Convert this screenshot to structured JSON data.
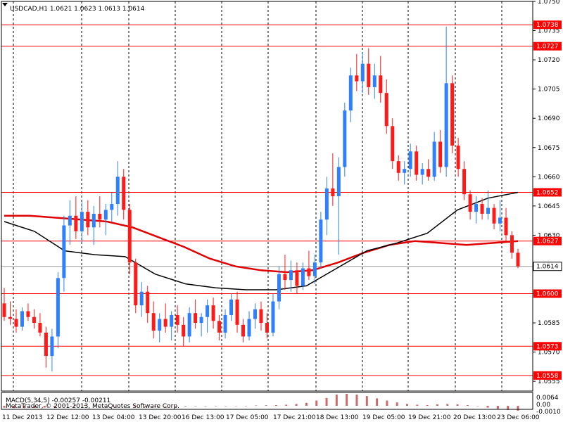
{
  "header": {
    "symbol_line": "USDCAD,H1  1.0621 1.0623 1.0613 1.0614"
  },
  "macd": {
    "label": "MACD(5,34,5) -0.00257 -0.00211",
    "copyright": "MetaTrader, © 2001-2013, MetaQuotes Software Corp.",
    "scale_top": "0.0064",
    "scale_zero": "0.00",
    "scale_bottom": "-0.0010"
  },
  "colors": {
    "bull": "#2f7fff",
    "bear": "#ff1a1a",
    "ma_slow": "#e00000",
    "ma_fast": "#000000",
    "level_line": "#ff0000",
    "grid": "#000000",
    "macd_bar": "#cc6b6b"
  },
  "chart_data": {
    "type": "candlestick",
    "symbol": "USDCAD",
    "timeframe": "H1",
    "last_price": 1.0614,
    "y_range": [
      1.055,
      1.075
    ],
    "price_ticks": [
      "1.0750",
      "1.0735",
      "1.0720",
      "1.0705",
      "1.0690",
      "1.0675",
      "1.0660",
      "1.0645",
      "1.0630",
      "1.0615",
      "1.0600",
      "1.0585",
      "1.0570",
      "1.0555"
    ],
    "levels": [
      {
        "value": 1.0738,
        "label": "1.0738"
      },
      {
        "value": 1.0727,
        "label": "1.0727"
      },
      {
        "value": 1.0652,
        "label": "1.0652"
      },
      {
        "value": 1.0627,
        "label": "1.0627"
      },
      {
        "value": 1.06,
        "label": "1.0600"
      },
      {
        "value": 1.0573,
        "label": "1.0573"
      },
      {
        "value": 1.0558,
        "label": "1.0558"
      }
    ],
    "x_labels": [
      "11 Dec 2013",
      "12 Dec 12:00",
      "13 Dec 04:00",
      "13 Dec 20:00",
      "16 Dec 13:00",
      "17 Dec 05:00",
      "17 Dec 21:00",
      "18 Dec 13:00",
      "19 Dec 05:00",
      "19 Dec 21:00",
      "20 Dec 13:00",
      "23 Dec 06:00"
    ],
    "candles": [
      [
        1.0595,
        1.0603,
        1.0586,
        1.0588
      ],
      [
        1.0588,
        1.0596,
        1.0584,
        1.0587
      ],
      [
        1.0587,
        1.0592,
        1.058,
        1.0583
      ],
      [
        1.0583,
        1.0593,
        1.0581,
        1.0591
      ],
      [
        1.0591,
        1.0595,
        1.0586,
        1.0588
      ],
      [
        1.0588,
        1.0592,
        1.0582,
        1.0585
      ],
      [
        1.0585,
        1.059,
        1.0578,
        1.058
      ],
      [
        1.058,
        1.0583,
        1.0562,
        1.0568
      ],
      [
        1.0568,
        1.0582,
        1.056,
        1.0578
      ],
      [
        1.0578,
        1.0611,
        1.0572,
        1.0608
      ],
      [
        1.0608,
        1.064,
        1.0601,
        1.0635
      ],
      [
        1.0635,
        1.0648,
        1.0625,
        1.064
      ],
      [
        1.064,
        1.065,
        1.0628,
        1.0632
      ],
      [
        1.0632,
        1.0647,
        1.0626,
        1.0642
      ],
      [
        1.0642,
        1.0648,
        1.063,
        1.0634
      ],
      [
        1.0634,
        1.0645,
        1.0625,
        1.0641
      ],
      [
        1.0641,
        1.065,
        1.0634,
        1.0638
      ],
      [
        1.0638,
        1.0646,
        1.063,
        1.0643
      ],
      [
        1.0643,
        1.0652,
        1.0637,
        1.0646
      ],
      [
        1.0646,
        1.0668,
        1.064,
        1.066
      ],
      [
        1.066,
        1.0664,
        1.0638,
        1.0643
      ],
      [
        1.0643,
        1.0646,
        1.061,
        1.0616
      ],
      [
        1.0616,
        1.0618,
        1.059,
        1.0594
      ],
      [
        1.0594,
        1.0606,
        1.0588,
        1.0601
      ],
      [
        1.0601,
        1.0604,
        1.0585,
        1.059
      ],
      [
        1.059,
        1.0596,
        1.0577,
        1.0581
      ],
      [
        1.0581,
        1.059,
        1.0575,
        1.0587
      ],
      [
        1.0587,
        1.0595,
        1.058,
        1.0583
      ],
      [
        1.0583,
        1.0591,
        1.0576,
        1.0589
      ],
      [
        1.0589,
        1.0594,
        1.058,
        1.0584
      ],
      [
        1.0584,
        1.0588,
        1.0573,
        1.0578
      ],
      [
        1.0578,
        1.0593,
        1.0575,
        1.059
      ],
      [
        1.059,
        1.0597,
        1.0582,
        1.0585
      ],
      [
        1.0585,
        1.059,
        1.0578,
        1.0588
      ],
      [
        1.0588,
        1.0597,
        1.058,
        1.0594
      ],
      [
        1.0594,
        1.0598,
        1.0582,
        1.0586
      ],
      [
        1.0586,
        1.0589,
        1.0576,
        1.058
      ],
      [
        1.058,
        1.0592,
        1.0577,
        1.0589
      ],
      [
        1.0589,
        1.06,
        1.0586,
        1.0597
      ],
      [
        1.0597,
        1.0601,
        1.058,
        1.0584
      ],
      [
        1.0584,
        1.0587,
        1.0575,
        1.0578
      ],
      [
        1.0578,
        1.0591,
        1.0576,
        1.0587
      ],
      [
        1.0587,
        1.0595,
        1.0582,
        1.0592
      ],
      [
        1.0592,
        1.0596,
        1.0581,
        1.0585
      ],
      [
        1.0585,
        1.059,
        1.0577,
        1.058
      ],
      [
        1.058,
        1.06,
        1.0578,
        1.0596
      ],
      [
        1.0596,
        1.0614,
        1.0592,
        1.061
      ],
      [
        1.061,
        1.062,
        1.0602,
        1.0607
      ],
      [
        1.0607,
        1.0617,
        1.0601,
        1.0612
      ],
      [
        1.0612,
        1.0616,
        1.06,
        1.0604
      ],
      [
        1.0604,
        1.0616,
        1.0602,
        1.0613
      ],
      [
        1.0613,
        1.0622,
        1.0607,
        1.0609
      ],
      [
        1.0609,
        1.062,
        1.0605,
        1.0616
      ],
      [
        1.0616,
        1.0642,
        1.0613,
        1.0638
      ],
      [
        1.0638,
        1.066,
        1.063,
        1.0654
      ],
      [
        1.0654,
        1.0672,
        1.0645,
        1.065
      ],
      [
        1.065,
        1.067,
        1.062,
        1.0665
      ],
      [
        1.0665,
        1.0698,
        1.066,
        1.0694
      ],
      [
        1.0694,
        1.0716,
        1.0688,
        1.0712
      ],
      [
        1.0712,
        1.0723,
        1.0704,
        1.0709
      ],
      [
        1.0709,
        1.0724,
        1.0703,
        1.0718
      ],
      [
        1.0718,
        1.0726,
        1.0702,
        1.0706
      ],
      [
        1.0706,
        1.0718,
        1.07,
        1.0712
      ],
      [
        1.0712,
        1.0722,
        1.0698,
        1.0703
      ],
      [
        1.0703,
        1.071,
        1.0682,
        1.0686
      ],
      [
        1.0686,
        1.069,
        1.0664,
        1.0668
      ],
      [
        1.0668,
        1.0671,
        1.0658,
        1.0662
      ],
      [
        1.0662,
        1.0668,
        1.0656,
        1.0664
      ],
      [
        1.0664,
        1.0677,
        1.066,
        1.0673
      ],
      [
        1.0673,
        1.0676,
        1.0658,
        1.0661
      ],
      [
        1.0661,
        1.0667,
        1.0656,
        1.0664
      ],
      [
        1.0664,
        1.0669,
        1.0658,
        1.066
      ],
      [
        1.066,
        1.0683,
        1.0658,
        1.0678
      ],
      [
        1.0678,
        1.0684,
        1.0662,
        1.0665
      ],
      [
        1.0665,
        1.0737,
        1.066,
        1.0708
      ],
      [
        1.0708,
        1.0712,
        1.0672,
        1.0676
      ],
      [
        1.0676,
        1.068,
        1.066,
        1.0664
      ],
      [
        1.0664,
        1.0668,
        1.0648,
        1.0651
      ],
      [
        1.0651,
        1.0653,
        1.0638,
        1.0642
      ],
      [
        1.0642,
        1.065,
        1.0636,
        1.0646
      ],
      [
        1.0646,
        1.0649,
        1.0638,
        1.0641
      ],
      [
        1.0641,
        1.0653,
        1.0638,
        1.0644
      ],
      [
        1.0644,
        1.0646,
        1.0633,
        1.0636
      ],
      [
        1.0636,
        1.0648,
        1.0632,
        1.0639
      ],
      [
        1.0639,
        1.0644,
        1.0627,
        1.063
      ],
      [
        1.063,
        1.0632,
        1.0618,
        1.0621
      ],
      [
        1.0621,
        1.0623,
        1.0613,
        1.0614
      ]
    ],
    "ma_slow": [
      1.064,
      1.064,
      1.0639,
      1.0638,
      1.0637,
      1.0634,
      1.0629,
      1.0624,
      1.0618,
      1.0614,
      1.0612,
      1.0611,
      1.0612,
      1.0616,
      1.0621,
      1.0625,
      1.0627,
      1.0626,
      1.0625,
      1.0626,
      1.0627
    ],
    "ma_fast": [
      1.0637,
      1.0632,
      1.0622,
      1.062,
      1.0619,
      1.061,
      1.0605,
      1.0603,
      1.0602,
      1.0602,
      1.0604,
      1.0613,
      1.0622,
      1.0626,
      1.0631,
      1.0643,
      1.0649,
      1.0652
    ],
    "macd_hist": [
      -0.001,
      -0.0012,
      -0.0012,
      -0.0011,
      -0.001,
      -0.0008,
      0.0002,
      0.0005,
      0.0004,
      0.0002,
      0.0001,
      -0.0001,
      -0.0002,
      -0.0004,
      -0.0005,
      -0.0005,
      -0.0004,
      -0.0003,
      -0.0003,
      -0.0002,
      -0.0002,
      -0.0002,
      -0.0002,
      -0.0001,
      0.0,
      0.0002,
      0.0003,
      0.0004,
      0.0006,
      0.001,
      0.0016,
      0.0028,
      0.0042,
      0.006,
      0.0064,
      0.006,
      0.0052,
      0.004,
      0.0028,
      0.0018,
      0.001,
      0.0006,
      0.0004,
      0.0008,
      0.001,
      0.0008,
      0.0004,
      -0.0002,
      -0.001,
      -0.0016,
      -0.0022,
      -0.0026
    ]
  }
}
